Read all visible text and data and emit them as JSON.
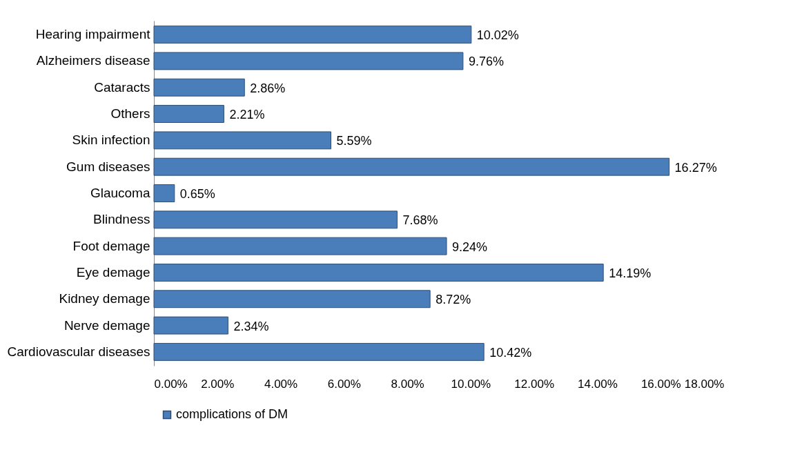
{
  "chart_data": {
    "type": "bar",
    "orientation": "horizontal",
    "categories": [
      "Hearing impairment",
      "Alzheimers disease",
      "Cataracts",
      "Others",
      "Skin infection",
      "Gum diseases",
      "Glaucoma",
      "Blindness",
      "Foot demage",
      "Eye demage",
      "Kidney demage",
      "Nerve demage",
      "Cardiovascular diseases"
    ],
    "series": [
      {
        "name": "complications of DM",
        "color": "#4a7ebb",
        "values": [
          10.02,
          9.76,
          2.86,
          2.21,
          5.59,
          16.27,
          0.65,
          7.68,
          9.24,
          14.19,
          8.72,
          2.34,
          10.42
        ],
        "value_labels": [
          "10.02%",
          "9.76%",
          "2.86%",
          "2.21%",
          "5.59%",
          "16.27%",
          "0.65%",
          "7.68%",
          "9.24%",
          "14.19%",
          "8.72%",
          "2.34%",
          "10.42%"
        ]
      }
    ],
    "xlim": [
      0,
      18
    ],
    "xticks": [
      {
        "value": 0,
        "label": "0.00%"
      },
      {
        "value": 2,
        "label": "2.00%"
      },
      {
        "value": 4,
        "label": "4.00%"
      },
      {
        "value": 6,
        "label": "6.00%"
      },
      {
        "value": 8,
        "label": "8.00%"
      },
      {
        "value": 10,
        "label": "10.00%"
      },
      {
        "value": 12,
        "label": "12.00%"
      },
      {
        "value": 14,
        "label": "14.00%"
      },
      {
        "value": 16,
        "label": "16.00%"
      },
      {
        "value": 18,
        "label": "18.00%"
      }
    ],
    "legend": "bottom"
  }
}
